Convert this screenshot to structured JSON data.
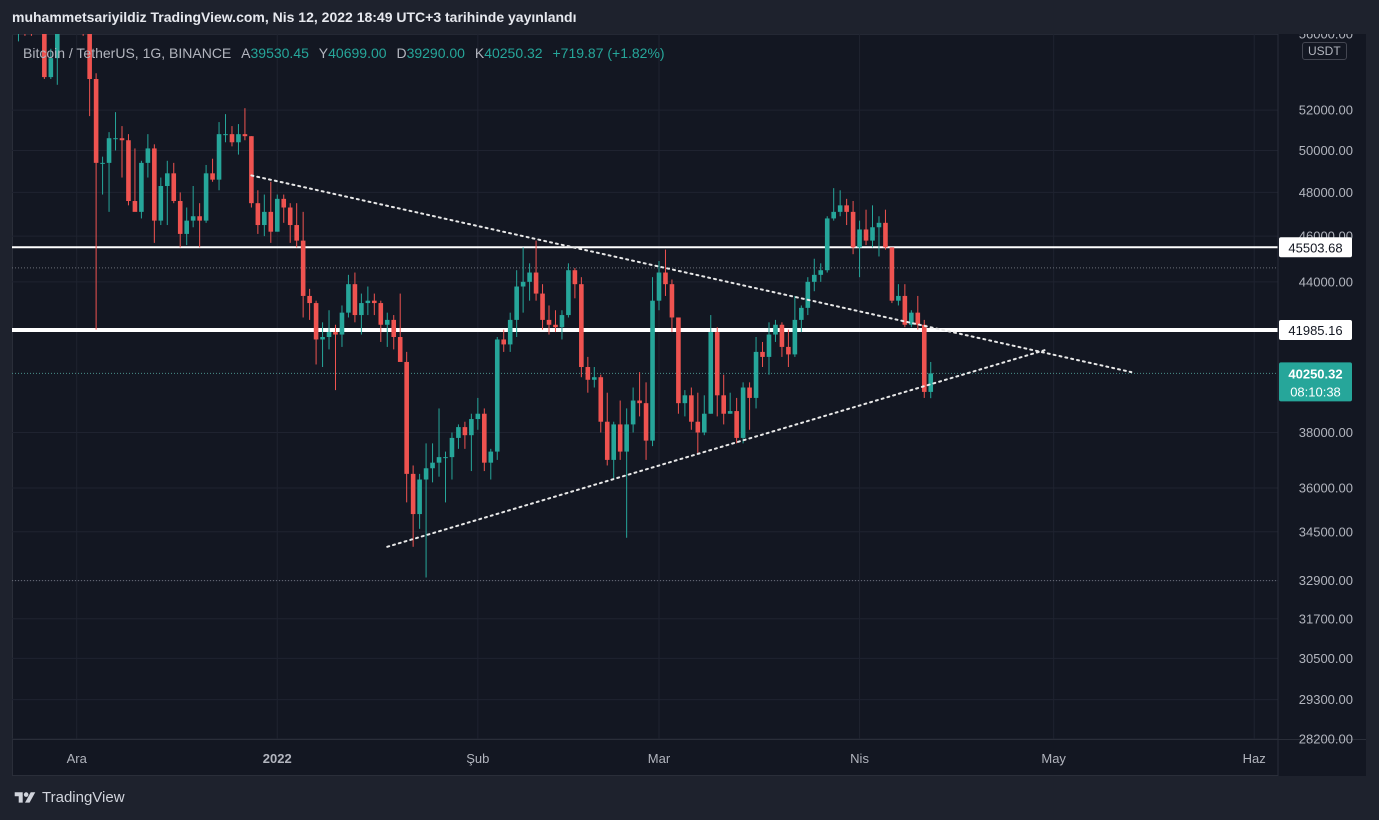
{
  "caption": "muhammetsariyildiz TradingView.com, Nis 12, 2022 18:49 UTC+3 tarihinde yayınlandı",
  "legend": {
    "symbol": "Bitcoin / TetherUS, 1G, BINANCE",
    "open_label": "A",
    "open": "39530.45",
    "high_label": "Y",
    "high": "40699.00",
    "low_label": "D",
    "low": "39290.00",
    "close_label": "K",
    "close": "40250.32",
    "change": "+719.87 (+1.82%)"
  },
  "unit": "USDT",
  "brand": "TradingView",
  "colors": {
    "up": "#26a69a",
    "down": "#ef5350",
    "background": "#131722",
    "grid": "#1f2330"
  },
  "chart_data": {
    "type": "candlestick",
    "symbol": "Bitcoin / TetherUS",
    "interval": "1G",
    "exchange": "BINANCE",
    "y_range": [
      28200,
      56000
    ],
    "y_ticks": [
      "56000.00",
      "52000.00",
      "50000.00",
      "48000.00",
      "46000.00",
      "44000.00",
      "38000.00",
      "36000.00",
      "34500.00",
      "32900.00",
      "31700.00",
      "30500.00",
      "29300.00",
      "28200.00"
    ],
    "x_ticks": [
      {
        "label": "Ara",
        "date": "2021-12-01",
        "bold": false
      },
      {
        "label": "2022",
        "date": "2022-01-01",
        "bold": true
      },
      {
        "label": "Şub",
        "date": "2022-02-01",
        "bold": false
      },
      {
        "label": "Mar",
        "date": "2022-03-01",
        "bold": false
      },
      {
        "label": "Nis",
        "date": "2022-04-01",
        "bold": false
      },
      {
        "label": "May",
        "date": "2022-05-01",
        "bold": false
      },
      {
        "label": "Haz",
        "date": "2022-06-01",
        "bold": false
      }
    ],
    "price_tags": [
      {
        "value": 45503.68,
        "label": "45503.68",
        "style": "white"
      },
      {
        "value": 41985.16,
        "label": "41985.16",
        "style": "white"
      },
      {
        "value": 40250.32,
        "label": "40250.32",
        "sublabel": "08:10:38",
        "style": "last"
      }
    ],
    "horizontal_lines": [
      {
        "value": 45503.68,
        "style": "solid-white"
      },
      {
        "value": 41985.16,
        "style": "solid-white-thick"
      },
      {
        "value": 44600,
        "style": "dotted"
      },
      {
        "value": 40250.32,
        "style": "dotted-teal"
      },
      {
        "value": 32900,
        "style": "dotted"
      }
    ],
    "trend_lines": [
      {
        "from": [
          "2021-12-28",
          48800
        ],
        "to": [
          "2022-05-13",
          40300
        ]
      },
      {
        "from": [
          "2022-01-18",
          34000
        ],
        "to": [
          "2022-04-30",
          41200
        ]
      }
    ],
    "candles": [
      [
        "2021-11-22",
        56400,
        57900,
        55600,
        57200
      ],
      [
        "2021-11-23",
        57200,
        57900,
        55900,
        57000
      ],
      [
        "2021-11-24",
        57000,
        57500,
        55900,
        56300
      ],
      [
        "2021-11-25",
        56300,
        59300,
        56100,
        58900
      ],
      [
        "2021-11-26",
        58900,
        59100,
        53600,
        53700
      ],
      [
        "2021-11-27",
        53700,
        55200,
        53600,
        54700
      ],
      [
        "2021-11-28",
        54700,
        57400,
        53300,
        57200
      ],
      [
        "2021-11-29",
        57200,
        58800,
        56800,
        57800
      ],
      [
        "2021-11-30",
        57800,
        59200,
        56000,
        56900
      ],
      [
        "2021-12-01",
        56900,
        59000,
        56500,
        57200
      ],
      [
        "2021-12-02",
        57200,
        57500,
        55900,
        56500
      ],
      [
        "2021-12-03",
        56500,
        57600,
        51700,
        53600
      ],
      [
        "2021-12-04",
        53600,
        53900,
        42000,
        49400
      ],
      [
        "2021-12-05",
        49400,
        49700,
        47900,
        49400
      ],
      [
        "2021-12-06",
        49400,
        50900,
        47100,
        50600
      ],
      [
        "2021-12-07",
        50600,
        51900,
        50000,
        50600
      ],
      [
        "2021-12-08",
        50600,
        51200,
        48700,
        50500
      ],
      [
        "2021-12-09",
        50500,
        50800,
        47400,
        47600
      ],
      [
        "2021-12-10",
        47600,
        50100,
        47300,
        47100
      ],
      [
        "2021-12-11",
        47100,
        49500,
        46800,
        49400
      ],
      [
        "2021-12-12",
        49400,
        50800,
        48700,
        50100
      ],
      [
        "2021-12-13",
        50100,
        50300,
        45700,
        46700
      ],
      [
        "2021-12-14",
        46700,
        48700,
        46500,
        48300
      ],
      [
        "2021-12-15",
        48300,
        49500,
        46500,
        48900
      ],
      [
        "2021-12-16",
        48900,
        49400,
        47500,
        47600
      ],
      [
        "2021-12-17",
        47600,
        48000,
        45500,
        46100
      ],
      [
        "2021-12-18",
        46100,
        47300,
        45600,
        46700
      ],
      [
        "2021-12-19",
        46700,
        48300,
        46400,
        46900
      ],
      [
        "2021-12-20",
        46900,
        47500,
        45500,
        46700
      ],
      [
        "2021-12-21",
        46700,
        49300,
        46600,
        48900
      ],
      [
        "2021-12-22",
        48900,
        49600,
        48500,
        48600
      ],
      [
        "2021-12-23",
        48600,
        51400,
        48100,
        50800
      ],
      [
        "2021-12-24",
        50800,
        51800,
        50400,
        50800
      ],
      [
        "2021-12-25",
        50800,
        51200,
        50200,
        50400
      ],
      [
        "2021-12-26",
        50400,
        51300,
        49800,
        50800
      ],
      [
        "2021-12-27",
        50800,
        52100,
        50500,
        50700
      ],
      [
        "2021-12-28",
        50700,
        50700,
        47300,
        47500
      ],
      [
        "2021-12-29",
        47500,
        48100,
        46100,
        46500
      ],
      [
        "2021-12-30",
        46500,
        47900,
        46000,
        47100
      ],
      [
        "2021-12-31",
        47100,
        48500,
        45700,
        46200
      ],
      [
        "2022-01-01",
        46200,
        47900,
        46200,
        47700
      ],
      [
        "2022-01-02",
        47700,
        47900,
        46600,
        47300
      ],
      [
        "2022-01-03",
        47300,
        47500,
        45700,
        46500
      ],
      [
        "2022-01-04",
        46500,
        47500,
        45500,
        45800
      ],
      [
        "2022-01-05",
        45800,
        47100,
        42500,
        43400
      ],
      [
        "2022-01-06",
        43400,
        43700,
        42400,
        43100
      ],
      [
        "2022-01-07",
        43100,
        43200,
        40600,
        41600
      ],
      [
        "2022-01-08",
        41600,
        42300,
        40500,
        41700
      ],
      [
        "2022-01-09",
        41700,
        42800,
        41200,
        41900
      ],
      [
        "2022-01-10",
        41900,
        42200,
        39600,
        41800
      ],
      [
        "2022-01-11",
        41800,
        43000,
        41300,
        42700
      ],
      [
        "2022-01-12",
        42700,
        44300,
        42500,
        43900
      ],
      [
        "2022-01-13",
        43900,
        44400,
        42300,
        42600
      ],
      [
        "2022-01-14",
        42600,
        43500,
        41800,
        43100
      ],
      [
        "2022-01-15",
        43100,
        43800,
        42600,
        43200
      ],
      [
        "2022-01-16",
        43200,
        43500,
        42600,
        43100
      ],
      [
        "2022-01-17",
        43100,
        43200,
        41500,
        42200
      ],
      [
        "2022-01-18",
        42200,
        42700,
        41300,
        42400
      ],
      [
        "2022-01-19",
        42400,
        42600,
        41200,
        41700
      ],
      [
        "2022-01-20",
        41700,
        43500,
        40800,
        40700
      ],
      [
        "2022-01-21",
        40700,
        41100,
        35500,
        36500
      ],
      [
        "2022-01-22",
        36500,
        36800,
        34000,
        35100
      ],
      [
        "2022-01-23",
        35100,
        36500,
        34600,
        36300
      ],
      [
        "2022-01-24",
        36300,
        37600,
        33000,
        36700
      ],
      [
        "2022-01-25",
        36700,
        37600,
        36200,
        36900
      ],
      [
        "2022-01-26",
        36900,
        38900,
        36400,
        37100
      ],
      [
        "2022-01-27",
        37100,
        37300,
        35500,
        37100
      ],
      [
        "2022-01-28",
        37100,
        38000,
        36300,
        37800
      ],
      [
        "2022-01-29",
        37800,
        38300,
        37400,
        38200
      ],
      [
        "2022-01-30",
        38200,
        38400,
        37400,
        37900
      ],
      [
        "2022-01-31",
        37900,
        38700,
        36600,
        38500
      ],
      [
        "2022-02-01",
        38500,
        39300,
        38100,
        38700
      ],
      [
        "2022-02-02",
        38700,
        38900,
        36600,
        36900
      ],
      [
        "2022-02-03",
        36900,
        37400,
        36300,
        37300
      ],
      [
        "2022-02-04",
        37300,
        41700,
        37000,
        41600
      ],
      [
        "2022-02-05",
        41600,
        42000,
        41100,
        41400
      ],
      [
        "2022-02-06",
        41400,
        42700,
        41100,
        42400
      ],
      [
        "2022-02-07",
        42400,
        44500,
        41700,
        43800
      ],
      [
        "2022-02-08",
        43800,
        45500,
        42700,
        44000
      ],
      [
        "2022-02-09",
        44000,
        44800,
        43200,
        44400
      ],
      [
        "2022-02-10",
        44400,
        45800,
        43200,
        43500
      ],
      [
        "2022-02-11",
        43500,
        43900,
        42000,
        42400
      ],
      [
        "2022-02-12",
        42400,
        43000,
        41800,
        42200
      ],
      [
        "2022-02-13",
        42200,
        42800,
        41900,
        42100
      ],
      [
        "2022-02-14",
        42100,
        42800,
        41600,
        42600
      ],
      [
        "2022-02-15",
        42600,
        44800,
        42500,
        44500
      ],
      [
        "2022-02-16",
        44500,
        44600,
        43300,
        43900
      ],
      [
        "2022-02-17",
        43900,
        44200,
        40100,
        40500
      ],
      [
        "2022-02-18",
        40500,
        40900,
        39500,
        40000
      ],
      [
        "2022-02-19",
        40000,
        40500,
        39700,
        40100
      ],
      [
        "2022-02-20",
        40100,
        40200,
        38000,
        38400
      ],
      [
        "2022-02-21",
        38400,
        39500,
        36800,
        37000
      ],
      [
        "2022-02-22",
        37000,
        38400,
        36300,
        38300
      ],
      [
        "2022-02-23",
        38300,
        39200,
        37000,
        37300
      ],
      [
        "2022-02-24",
        37300,
        38900,
        34300,
        38300
      ],
      [
        "2022-02-25",
        38300,
        39700,
        38000,
        39200
      ],
      [
        "2022-02-26",
        39200,
        40300,
        38600,
        39100
      ],
      [
        "2022-02-27",
        39100,
        39900,
        37000,
        37700
      ],
      [
        "2022-02-28",
        37700,
        44200,
        37500,
        43200
      ],
      [
        "2022-03-01",
        43200,
        44900,
        42800,
        44400
      ],
      [
        "2022-03-02",
        44400,
        45400,
        43400,
        43900
      ],
      [
        "2022-03-03",
        43900,
        44100,
        41900,
        42500
      ],
      [
        "2022-03-04",
        42500,
        42500,
        38700,
        39100
      ],
      [
        "2022-03-05",
        39100,
        39600,
        38600,
        39400
      ],
      [
        "2022-03-06",
        39400,
        39700,
        38100,
        38400
      ],
      [
        "2022-03-07",
        38400,
        39500,
        37200,
        38000
      ],
      [
        "2022-03-08",
        38000,
        39400,
        37900,
        38700
      ],
      [
        "2022-03-09",
        38700,
        42600,
        38700,
        41900
      ],
      [
        "2022-03-10",
        41900,
        42100,
        38600,
        39400
      ],
      [
        "2022-03-11",
        39400,
        40200,
        38300,
        38700
      ],
      [
        "2022-03-12",
        38700,
        39500,
        38700,
        38800
      ],
      [
        "2022-03-13",
        38800,
        39300,
        37600,
        37800
      ],
      [
        "2022-03-14",
        37800,
        39900,
        37600,
        39700
      ],
      [
        "2022-03-15",
        39700,
        39900,
        38100,
        39300
      ],
      [
        "2022-03-16",
        39300,
        41700,
        38900,
        41100
      ],
      [
        "2022-03-17",
        41100,
        41500,
        40500,
        40900
      ],
      [
        "2022-03-18",
        40900,
        42300,
        40200,
        41800
      ],
      [
        "2022-03-19",
        41800,
        42400,
        41500,
        42200
      ],
      [
        "2022-03-20",
        42200,
        42300,
        40900,
        41300
      ],
      [
        "2022-03-21",
        41300,
        42000,
        40500,
        41000
      ],
      [
        "2022-03-22",
        41000,
        43400,
        40900,
        42400
      ],
      [
        "2022-03-23",
        42400,
        43000,
        41900,
        42900
      ],
      [
        "2022-03-24",
        42900,
        44200,
        42600,
        44000
      ],
      [
        "2022-03-25",
        44000,
        45000,
        43600,
        44300
      ],
      [
        "2022-03-26",
        44300,
        44800,
        44000,
        44500
      ],
      [
        "2022-03-27",
        44500,
        46900,
        44400,
        46800
      ],
      [
        "2022-03-28",
        46800,
        48200,
        46700,
        47100
      ],
      [
        "2022-03-29",
        47100,
        48100,
        46900,
        47400
      ],
      [
        "2022-03-30",
        47400,
        47700,
        46500,
        47100
      ],
      [
        "2022-03-31",
        47100,
        47600,
        45200,
        45500
      ],
      [
        "2022-04-01",
        45500,
        46700,
        44200,
        46300
      ],
      [
        "2022-04-02",
        46300,
        47200,
        45600,
        45800
      ],
      [
        "2022-04-03",
        45800,
        47400,
        45500,
        46400
      ],
      [
        "2022-04-04",
        46400,
        46900,
        45100,
        46600
      ],
      [
        "2022-04-05",
        46600,
        47200,
        45400,
        45500
      ],
      [
        "2022-04-06",
        45500,
        45500,
        43100,
        43200
      ],
      [
        "2022-04-07",
        43200,
        43900,
        43000,
        43400
      ],
      [
        "2022-04-08",
        43400,
        43900,
        42100,
        42200
      ],
      [
        "2022-04-09",
        42200,
        42800,
        42100,
        42700
      ],
      [
        "2022-04-10",
        42700,
        43400,
        42000,
        42200
      ],
      [
        "2022-04-11",
        42200,
        42400,
        39300,
        39530
      ],
      [
        "2022-04-12",
        39530.45,
        40699,
        39290,
        40250.32
      ]
    ]
  }
}
